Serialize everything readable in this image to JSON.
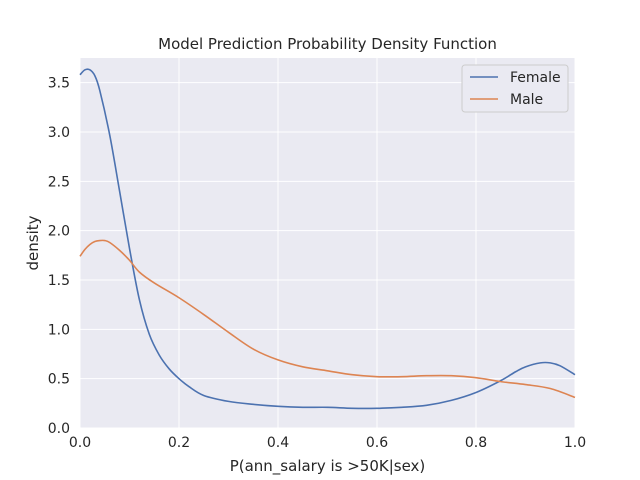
{
  "chart_data": {
    "type": "line",
    "title": "Model Prediction Probability Density Function",
    "xlabel": "P(ann_salary is >50K|sex)",
    "ylabel": "density",
    "xlim": [
      0.0,
      1.0
    ],
    "ylim": [
      0.0,
      3.75
    ],
    "xticks": [
      0.0,
      0.2,
      0.4,
      0.6,
      0.8,
      1.0
    ],
    "xtick_labels": [
      "0.0",
      "0.2",
      "0.4",
      "0.6",
      "0.8",
      "1.0"
    ],
    "yticks": [
      0.0,
      0.5,
      1.0,
      1.5,
      2.0,
      2.5,
      3.0,
      3.5
    ],
    "ytick_labels": [
      "0.0",
      "0.5",
      "1.0",
      "1.5",
      "2.0",
      "2.5",
      "3.0",
      "3.5"
    ],
    "grid": true,
    "legend_position": "top-right",
    "background_color": "#eaeaf2",
    "series": [
      {
        "name": "Female",
        "color": "#4c72b0",
        "x": [
          0.0,
          0.01,
          0.02,
          0.03,
          0.04,
          0.06,
          0.08,
          0.1,
          0.12,
          0.14,
          0.16,
          0.18,
          0.2,
          0.22,
          0.25,
          0.3,
          0.35,
          0.4,
          0.45,
          0.5,
          0.55,
          0.6,
          0.65,
          0.7,
          0.75,
          0.8,
          0.85,
          0.88,
          0.9,
          0.93,
          0.95,
          0.97,
          1.0
        ],
        "y": [
          3.58,
          3.63,
          3.63,
          3.57,
          3.42,
          2.97,
          2.4,
          1.82,
          1.3,
          0.95,
          0.74,
          0.6,
          0.5,
          0.42,
          0.33,
          0.27,
          0.24,
          0.22,
          0.21,
          0.21,
          0.2,
          0.2,
          0.21,
          0.23,
          0.28,
          0.36,
          0.48,
          0.57,
          0.62,
          0.66,
          0.66,
          0.63,
          0.54
        ]
      },
      {
        "name": "Male",
        "color": "#dd8452",
        "x": [
          0.0,
          0.01,
          0.02,
          0.03,
          0.04,
          0.05,
          0.06,
          0.08,
          0.1,
          0.12,
          0.15,
          0.2,
          0.25,
          0.3,
          0.35,
          0.4,
          0.45,
          0.5,
          0.55,
          0.6,
          0.65,
          0.7,
          0.75,
          0.8,
          0.85,
          0.9,
          0.95,
          1.0
        ],
        "y": [
          1.74,
          1.81,
          1.86,
          1.89,
          1.9,
          1.9,
          1.88,
          1.8,
          1.7,
          1.58,
          1.47,
          1.32,
          1.15,
          0.97,
          0.8,
          0.69,
          0.62,
          0.58,
          0.54,
          0.52,
          0.52,
          0.53,
          0.53,
          0.51,
          0.47,
          0.44,
          0.4,
          0.31
        ]
      }
    ]
  }
}
